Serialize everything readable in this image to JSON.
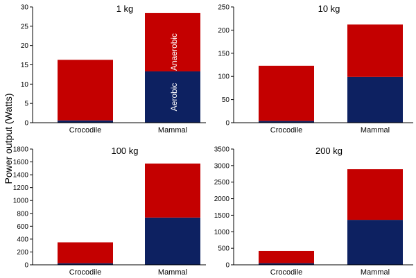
{
  "figure": {
    "ylabel": "Power output  (Watts)",
    "colors": {
      "aerobic": "#0d2161",
      "anaerobic": "#c40000"
    }
  },
  "chart_data": [
    {
      "type": "bar",
      "stacked": true,
      "title": "1 kg",
      "categories": [
        "Crocodile",
        "Mammal"
      ],
      "series": [
        {
          "name": "Aerobic",
          "values": [
            0.6,
            13.3
          ]
        },
        {
          "name": "Anaerobic",
          "values": [
            15.7,
            15.1
          ]
        }
      ],
      "ylim": [
        0,
        30
      ],
      "yticks": [
        0,
        5,
        10,
        15,
        20,
        25,
        30
      ],
      "annotations": [
        {
          "text": "Aerobic",
          "series": "Aerobic",
          "category": "Mammal"
        },
        {
          "text": "Anaerobic",
          "series": "Anaerobic",
          "category": "Mammal"
        }
      ]
    },
    {
      "type": "bar",
      "stacked": true,
      "title": "10 kg",
      "categories": [
        "Crocodile",
        "Mammal"
      ],
      "series": [
        {
          "name": "Aerobic",
          "values": [
            4,
            99
          ]
        },
        {
          "name": "Anaerobic",
          "values": [
            119,
            113
          ]
        }
      ],
      "ylim": [
        0,
        250
      ],
      "yticks": [
        0,
        50,
        100,
        150,
        200,
        250
      ]
    },
    {
      "type": "bar",
      "stacked": true,
      "title": "100 kg",
      "categories": [
        "Crocodile",
        "Mammal"
      ],
      "series": [
        {
          "name": "Aerobic",
          "values": [
            25,
            735
          ]
        },
        {
          "name": "Anaerobic",
          "values": [
            325,
            840
          ]
        }
      ],
      "ylim": [
        0,
        1800
      ],
      "yticks": [
        0,
        200,
        400,
        600,
        800,
        1000,
        1200,
        1400,
        1600,
        1800
      ]
    },
    {
      "type": "bar",
      "stacked": true,
      "title": "200 kg",
      "categories": [
        "Crocodile",
        "Mammal"
      ],
      "series": [
        {
          "name": "Aerobic",
          "values": [
            50,
            1360
          ]
        },
        {
          "name": "Anaerobic",
          "values": [
            370,
            1530
          ]
        }
      ],
      "ylim": [
        0,
        3500
      ],
      "yticks": [
        0,
        500,
        1000,
        1500,
        2000,
        2500,
        3000,
        3500
      ]
    }
  ]
}
